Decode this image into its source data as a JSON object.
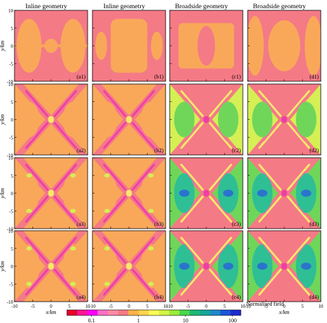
{
  "column_titles": [
    "Inline geometry",
    "Inline geometry",
    "Broadside geometry",
    "Broadside geometry"
  ],
  "panel_labels": [
    [
      "(a1)",
      "(b1)",
      "(c1)",
      "(d1)"
    ],
    [
      "(a2)",
      "(b2)",
      "(c2)",
      "(d2)"
    ],
    [
      "(a3)",
      "(b3)",
      "(c3)",
      "(d3)"
    ],
    [
      "(a4)",
      "(b4)",
      "(c4)",
      "(d4)"
    ]
  ],
  "axes": {
    "xlabel": "x/km",
    "ylabel": "y/km",
    "ticks": [
      "-10",
      "-5",
      "0",
      "5",
      "10"
    ],
    "range": [
      -10,
      10
    ]
  },
  "colorbar": {
    "label": "Normalized field",
    "tick_labels": [
      "0.1",
      "1",
      "10",
      "100"
    ],
    "scale": "log",
    "range": [
      0.03,
      150
    ],
    "colors": [
      "#e8002a",
      "#ff1493",
      "#ff00ff",
      "#ff6ec7",
      "#ff8aa6",
      "#f57a84",
      "#ffb347",
      "#ffd54d",
      "#ffff55",
      "#d4f542",
      "#9aeb3a",
      "#49d84a",
      "#1fb875",
      "#14a89a",
      "#1e88c9",
      "#1c56d8",
      "#1a2bd0"
    ]
  },
  "palette": {
    "background": "#f47a86",
    "base": "#f9a85a",
    "magenta": "#ee3fa6",
    "pink": "#f76da5",
    "yellow": "#f7e86a",
    "yellowgreen": "#d5ef55",
    "green": "#6fd65a",
    "teal": "#2fbf95",
    "blue": "#2a74cd"
  }
}
